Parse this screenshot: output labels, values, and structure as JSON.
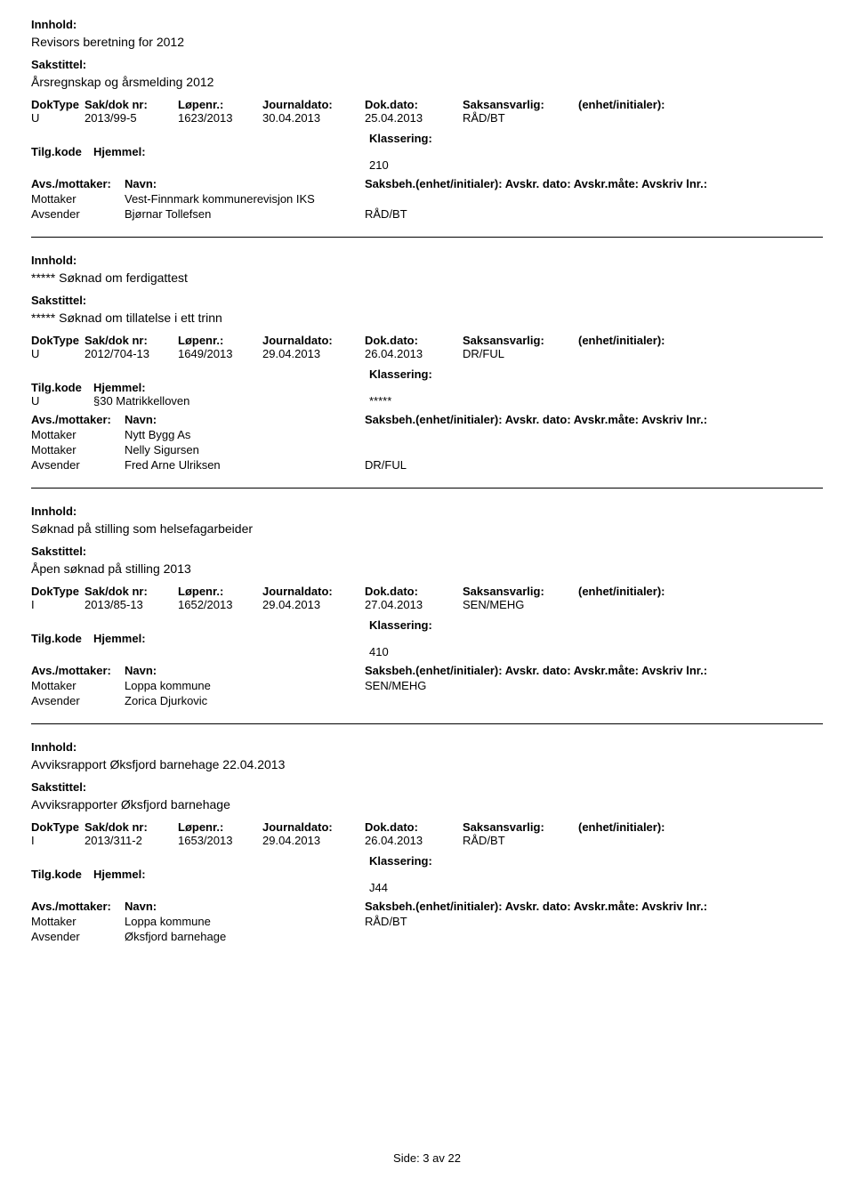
{
  "labels": {
    "innhold": "Innhold:",
    "sakstittel": "Sakstittel:",
    "dokType": "DokType",
    "sakDokNr": "Sak/dok nr:",
    "lopenr": "Løpenr.:",
    "journaldato": "Journaldato:",
    "dokDato": "Dok.dato:",
    "saksansvarlig": "Saksansvarlig:",
    "enhet": "(enhet/initialer):",
    "tilgKode": "Tilg.kode",
    "hjemmel": "Hjemmel:",
    "klassering": "Klassering:",
    "avsMottaker": "Avs./mottaker:",
    "navn": "Navn:",
    "saksbeh": "Saksbeh.(enhet/initialer): Avskr. dato:  Avskr.måte:  Avskriv lnr.:",
    "mottaker": "Mottaker",
    "avsender": "Avsender"
  },
  "records": [
    {
      "innhold": "Revisors beretning for 2012",
      "sakstittel": "Årsregnskap og årsmelding 2012",
      "dokType": "U",
      "sakDokNr": "2013/99-5",
      "lopenr": "1623/2013",
      "journaldato": "30.04.2013",
      "dokDato": "25.04.2013",
      "saksansvarlig": "RÅD/BT",
      "tilgKode": "",
      "hjemmel": "",
      "klassering": "210",
      "parties": [
        {
          "role": "Mottaker",
          "name": "Vest-Finnmark kommunerevisjon IKS",
          "unit": ""
        },
        {
          "role": "Avsender",
          "name": "Bjørnar Tollefsen",
          "unit": "RÅD/BT"
        }
      ]
    },
    {
      "innhold": "*****  Søknad om ferdigattest",
      "sakstittel": "*****  Søknad om tillatelse i ett trinn",
      "dokType": "U",
      "sakDokNr": "2012/704-13",
      "lopenr": "1649/2013",
      "journaldato": "29.04.2013",
      "dokDato": "26.04.2013",
      "saksansvarlig": "DR/FUL",
      "tilgKode": "U",
      "hjemmel": "§30 Matrikkelloven",
      "klassering": "*****",
      "parties": [
        {
          "role": "Mottaker",
          "name": "Nytt Bygg As",
          "unit": ""
        },
        {
          "role": "Mottaker",
          "name": "Nelly Sigursen",
          "unit": ""
        },
        {
          "role": "Avsender",
          "name": "Fred Arne Ulriksen",
          "unit": "DR/FUL"
        }
      ]
    },
    {
      "innhold": "Søknad på stilling som helsefagarbeider",
      "sakstittel": "Åpen søknad på stilling 2013",
      "dokType": "I",
      "sakDokNr": "2013/85-13",
      "lopenr": "1652/2013",
      "journaldato": "29.04.2013",
      "dokDato": "27.04.2013",
      "saksansvarlig": "SEN/MEHG",
      "tilgKode": "",
      "hjemmel": "",
      "klassering": "410",
      "parties": [
        {
          "role": "Mottaker",
          "name": "Loppa kommune",
          "unit": "SEN/MEHG"
        },
        {
          "role": "Avsender",
          "name": "Zorica Djurkovic",
          "unit": ""
        }
      ]
    },
    {
      "innhold": "Avviksrapport Øksfjord barnehage 22.04.2013",
      "sakstittel": "Avviksrapporter Øksfjord barnehage",
      "dokType": "I",
      "sakDokNr": "2013/311-2",
      "lopenr": "1653/2013",
      "journaldato": "29.04.2013",
      "dokDato": "26.04.2013",
      "saksansvarlig": "RÅD/BT",
      "tilgKode": "",
      "hjemmel": "",
      "klassering": "J44",
      "parties": [
        {
          "role": "Mottaker",
          "name": "Loppa kommune",
          "unit": "RÅD/BT"
        },
        {
          "role": "Avsender",
          "name": "Øksfjord barnehage",
          "unit": ""
        }
      ]
    }
  ],
  "footer": "Side:  3 av  22"
}
